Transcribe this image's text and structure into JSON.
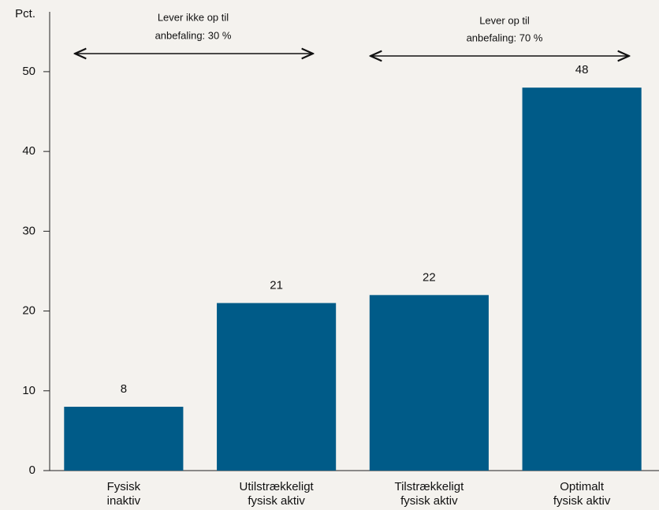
{
  "chart_data": {
    "type": "bar",
    "y_label": "Pct.",
    "categories": [
      [
        "Fysisk",
        "inaktiv"
      ],
      [
        "Utilstrækkeligt",
        "fysisk aktiv"
      ],
      [
        "Tilstrækkeligt",
        "fysisk aktiv"
      ],
      [
        "Optimalt",
        "fysisk aktiv"
      ]
    ],
    "values": [
      8,
      21,
      22,
      48
    ],
    "color": "#005b88",
    "ylim": [
      0,
      57.5
    ],
    "yticks": [
      0,
      10,
      20,
      30,
      40,
      50
    ],
    "grid": false,
    "annotations": [
      [
        "Lever ikke op til",
        "anbefaling: 30 %"
      ],
      [
        "Lever op til",
        "anbefaling: 70 %"
      ]
    ]
  }
}
